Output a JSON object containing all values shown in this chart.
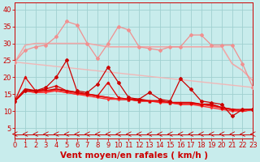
{
  "background_color": "#c8ecec",
  "grid_color": "#a0d0d0",
  "xlabel": "Vent moyen/en rafales ( km/h )",
  "xlim": [
    0,
    23
  ],
  "ylim": [
    2,
    42
  ],
  "yticks": [
    5,
    10,
    15,
    20,
    25,
    30,
    35,
    40
  ],
  "xticks": [
    0,
    1,
    2,
    3,
    4,
    5,
    6,
    7,
    8,
    9,
    10,
    11,
    12,
    13,
    14,
    15,
    16,
    17,
    18,
    19,
    20,
    21,
    22,
    23
  ],
  "line_light1": {
    "x": [
      0,
      1,
      2,
      3,
      4,
      5,
      6,
      7,
      8,
      9,
      10,
      11,
      12,
      13,
      14,
      15,
      16,
      17,
      18,
      19,
      20,
      21,
      22,
      23
    ],
    "y": [
      24.5,
      28,
      29,
      29.5,
      32,
      36.5,
      35.5,
      30,
      25.5,
      30,
      35,
      34,
      29,
      28.5,
      28,
      29,
      29,
      32.5,
      32.5,
      29.5,
      29.5,
      29.5,
      24,
      17
    ],
    "color": "#f09090",
    "lw": 0.9,
    "marker": "D",
    "ms": 2.0
  },
  "line_light2": {
    "x": [
      0,
      1,
      2,
      3,
      4,
      5,
      6,
      7,
      8,
      9,
      10,
      11,
      12,
      13,
      14,
      15,
      16,
      17,
      18,
      19,
      20,
      21,
      22,
      23
    ],
    "y": [
      24.5,
      29.5,
      30,
      30,
      30,
      30,
      30,
      30,
      29.5,
      29,
      29,
      29,
      29,
      29,
      29,
      29,
      29,
      29,
      29,
      29,
      29,
      24,
      22,
      19
    ],
    "color": "#f0a8a8",
    "lw": 1.2,
    "marker": null
  },
  "line_diagonal": {
    "x": [
      0,
      23
    ],
    "y": [
      24.5,
      17
    ],
    "color": "#f0b8b8",
    "lw": 1.0,
    "marker": null
  },
  "line_red_spiky1": {
    "x": [
      0,
      1,
      2,
      3,
      4,
      5,
      6,
      7,
      8,
      9,
      10,
      11,
      12,
      13,
      14,
      15,
      16,
      17,
      18,
      19,
      20,
      21,
      22,
      23
    ],
    "y": [
      13,
      16,
      16,
      17,
      20,
      25,
      16,
      15.5,
      18,
      23,
      18.5,
      14,
      13.5,
      15.5,
      13.5,
      13,
      19.5,
      16.5,
      13,
      12.5,
      12,
      8.5,
      10.5,
      10.5
    ],
    "color": "#cc0000",
    "lw": 0.9,
    "marker": "D",
    "ms": 2.0
  },
  "line_red_spiky2": {
    "x": [
      0,
      1,
      2,
      3,
      4,
      5,
      6,
      7,
      8,
      9,
      10,
      11,
      12,
      13,
      14,
      15,
      16,
      17,
      18,
      19,
      20,
      21,
      22,
      23
    ],
    "y": [
      13,
      20,
      16,
      16.5,
      17.5,
      16,
      15.5,
      15,
      14.5,
      18.5,
      14,
      13.5,
      13,
      13,
      13,
      12.5,
      12.5,
      12.5,
      12,
      12,
      11,
      10.5,
      10.5,
      10.5
    ],
    "color": "#dd0000",
    "lw": 0.9,
    "marker": "^",
    "ms": 2.0
  },
  "line_red_smooth1": {
    "x": [
      0,
      1,
      2,
      3,
      4,
      5,
      6,
      7,
      8,
      9,
      10,
      11,
      12,
      13,
      14,
      15,
      16,
      17,
      18,
      19,
      20,
      21,
      22,
      23
    ],
    "y": [
      13,
      16.5,
      16,
      16,
      16.5,
      16,
      15.5,
      15,
      14.5,
      14,
      13.5,
      13.5,
      13.5,
      13,
      13,
      12.5,
      12.5,
      12.5,
      12,
      12,
      11,
      10.5,
      10,
      10.5
    ],
    "color": "#cc0000",
    "lw": 1.4,
    "marker": null
  },
  "line_red_smooth2": {
    "x": [
      0,
      1,
      2,
      3,
      4,
      5,
      6,
      7,
      8,
      9,
      10,
      11,
      12,
      13,
      14,
      15,
      16,
      17,
      18,
      19,
      20,
      21,
      22,
      23
    ],
    "y": [
      13,
      16,
      15.5,
      16,
      16,
      15.5,
      15,
      15,
      14.5,
      14,
      13.5,
      13.5,
      13,
      13,
      13,
      12.5,
      12,
      12,
      12,
      11.5,
      11,
      10.5,
      10,
      10.5
    ],
    "color": "#ee2222",
    "lw": 1.2,
    "marker": null
  },
  "line_red_smooth3": {
    "x": [
      0,
      1,
      2,
      3,
      4,
      5,
      6,
      7,
      8,
      9,
      10,
      11,
      12,
      13,
      14,
      15,
      16,
      17,
      18,
      19,
      20,
      21,
      22,
      23
    ],
    "y": [
      13,
      16,
      15.5,
      15.5,
      16,
      15.5,
      15,
      14.5,
      14,
      13.5,
      13.5,
      13.5,
      13,
      13,
      12.5,
      12.5,
      12,
      12,
      11.5,
      11,
      10.5,
      10,
      10,
      10.5
    ],
    "color": "#ff3333",
    "lw": 1.0,
    "marker": "v",
    "ms": 1.8
  },
  "arrow_color": "#cc0000",
  "xlabel_color": "#cc0000",
  "xlabel_fontsize": 7.5,
  "tick_color": "#cc0000",
  "tick_fontsize": 6
}
